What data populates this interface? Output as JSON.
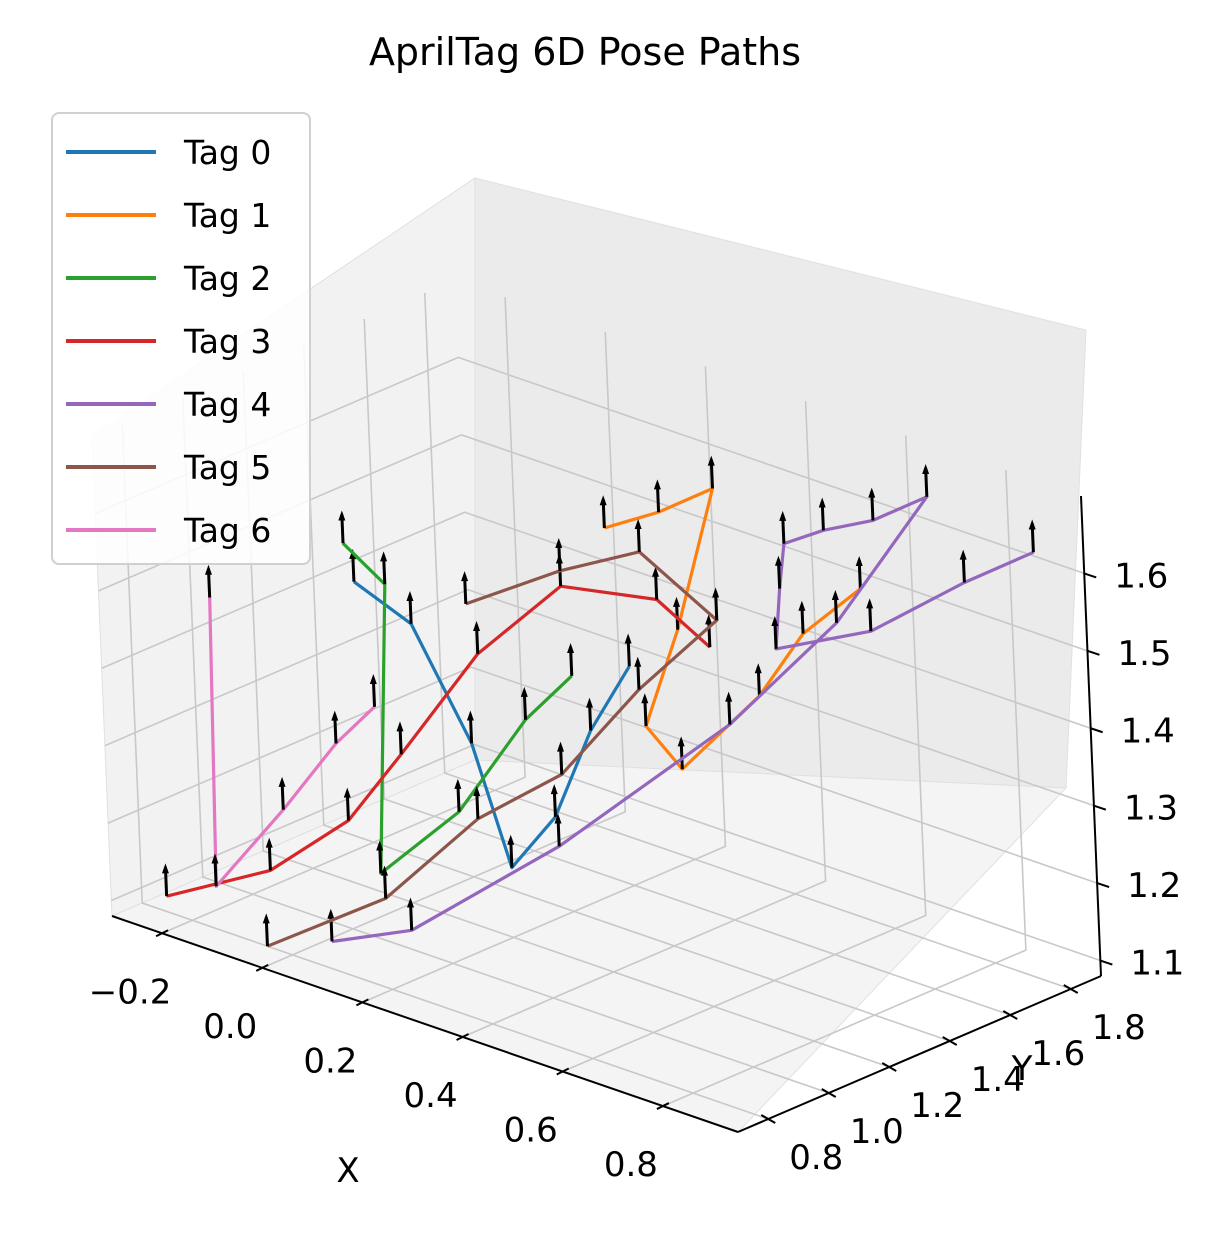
{
  "chart_data": {
    "type": "line",
    "projection": "3d",
    "title": "AprilTag 6D Pose Paths",
    "xlabel": "X",
    "ylabel": "Y",
    "zlabel": "",
    "x_ticks": [
      "−0.2",
      "0.0",
      "0.2",
      "0.4",
      "0.6",
      "0.8"
    ],
    "y_ticks": [
      "0.8",
      "1.0",
      "1.2",
      "1.4",
      "1.6",
      "1.8"
    ],
    "z_ticks": [
      "1.1",
      "1.2",
      "1.3",
      "1.4",
      "1.5",
      "1.6"
    ],
    "xlim": [
      -0.3,
      0.95
    ],
    "ylim": [
      0.7,
      1.9
    ],
    "zlim": [
      1.08,
      1.7
    ],
    "grid": true,
    "legend_position": "upper-left",
    "orientation_markers": "black arrows along each path",
    "series": [
      {
        "name": "Tag 0",
        "color": "#1f77b4",
        "points": [
          [
            0.0,
            1.05,
            1.52
          ],
          [
            0.05,
            1.15,
            1.46
          ],
          [
            0.1,
            1.25,
            1.3
          ],
          [
            0.14,
            1.3,
            1.14
          ],
          [
            0.22,
            1.32,
            1.22
          ],
          [
            0.28,
            1.35,
            1.34
          ],
          [
            0.32,
            1.42,
            1.42
          ]
        ]
      },
      {
        "name": "Tag 1",
        "color": "#ff7f0e",
        "points": [
          [
            0.2,
            1.55,
            1.55
          ],
          [
            0.28,
            1.6,
            1.58
          ],
          [
            0.36,
            1.65,
            1.62
          ],
          [
            0.34,
            1.55,
            1.45
          ],
          [
            0.33,
            1.45,
            1.34
          ],
          [
            0.4,
            1.45,
            1.3
          ],
          [
            0.5,
            1.55,
            1.4
          ],
          [
            0.55,
            1.62,
            1.48
          ],
          [
            0.62,
            1.7,
            1.54
          ]
        ]
      },
      {
        "name": "Tag 2",
        "color": "#2ca02c",
        "points": [
          [
            -0.05,
            1.1,
            1.55
          ],
          [
            0.0,
            1.15,
            1.5
          ],
          [
            0.03,
            1.05,
            1.15
          ],
          [
            0.1,
            1.2,
            1.22
          ],
          [
            0.18,
            1.3,
            1.34
          ],
          [
            0.24,
            1.36,
            1.4
          ]
        ]
      },
      {
        "name": "Tag 3",
        "color": "#d62728",
        "points": [
          [
            -0.25,
            0.8,
            1.1
          ],
          [
            -0.1,
            0.9,
            1.15
          ],
          [
            0.0,
            1.0,
            1.22
          ],
          [
            0.05,
            1.1,
            1.3
          ],
          [
            0.12,
            1.25,
            1.42
          ],
          [
            0.2,
            1.4,
            1.5
          ],
          [
            0.3,
            1.55,
            1.48
          ],
          [
            0.36,
            1.62,
            1.42
          ]
        ]
      },
      {
        "name": "Tag 4",
        "color": "#9467bd",
        "points": [
          [
            0.05,
            0.85,
            1.1
          ],
          [
            0.15,
            0.95,
            1.12
          ],
          [
            0.3,
            1.2,
            1.22
          ],
          [
            0.5,
            1.45,
            1.38
          ],
          [
            0.6,
            1.65,
            1.5
          ],
          [
            0.7,
            1.8,
            1.66
          ],
          [
            0.62,
            1.75,
            1.62
          ],
          [
            0.55,
            1.7,
            1.6
          ],
          [
            0.5,
            1.65,
            1.58
          ],
          [
            0.55,
            1.55,
            1.55
          ],
          [
            0.6,
            1.45,
            1.5
          ],
          [
            0.7,
            1.6,
            1.52
          ],
          [
            0.8,
            1.75,
            1.58
          ],
          [
            0.88,
            1.85,
            1.62
          ]
        ]
      },
      {
        "name": "Tag 5",
        "color": "#8c564b",
        "points": [
          [
            -0.05,
            0.8,
            1.08
          ],
          [
            0.1,
            0.95,
            1.15
          ],
          [
            0.2,
            1.1,
            1.25
          ],
          [
            0.28,
            1.25,
            1.3
          ],
          [
            0.35,
            1.4,
            1.4
          ],
          [
            0.42,
            1.55,
            1.48
          ],
          [
            0.3,
            1.5,
            1.55
          ],
          [
            0.2,
            1.4,
            1.52
          ],
          [
            0.1,
            1.25,
            1.48
          ]
        ]
      },
      {
        "name": "Tag 6",
        "color": "#e377c2",
        "points": [
          [
            -0.2,
            0.9,
            1.48
          ],
          [
            -0.18,
            0.85,
            1.12
          ],
          [
            -0.1,
            0.95,
            1.22
          ],
          [
            -0.05,
            1.05,
            1.3
          ],
          [
            0.0,
            1.1,
            1.35
          ]
        ]
      }
    ]
  }
}
